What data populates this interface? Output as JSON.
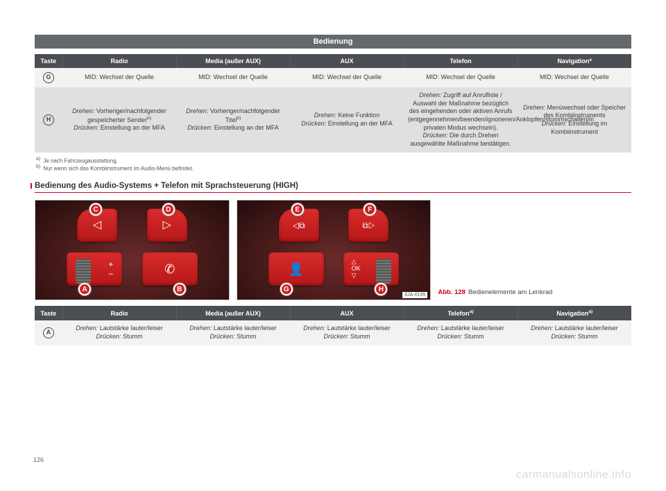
{
  "section_header": "Bedienung",
  "table1": {
    "headers": [
      "Taste",
      "Radio",
      "Media (außer AUX)",
      "AUX",
      "Telefon",
      "Navigation*"
    ],
    "rows": [
      {
        "key": "G",
        "shade": "light",
        "cells": [
          "MID: Wechsel der Quelle",
          "MID: Wechsel der Quelle",
          "MID: Wechsel der Quelle",
          "MID: Wechsel der Quelle",
          "MID: Wechsel der Quelle"
        ]
      },
      {
        "key": "H",
        "shade": "dark",
        "cells": [
          "<em>Drehen:</em> Vorheriger/nachfolgender gespeicherter Sender<sup>b)</sup><br><em>Drücken:</em> Einstellung an der MFA",
          "<em>Drehen:</em> Vorheriger/nachfolgender Titel<sup>b)</sup><br><em>Drücken:</em> Einstellung an der MFA",
          "<em>Drehen:</em> Keine Funktion<br><em>Drücken:</em> Einstellung an der MFA",
          "<em>Drehen:</em> Zugriff auf Anrufliste / Auswahl der Maßnahme bezüglich des eingehenden oder aktiven Anrufs (entgegennehmen/beenden/ignorieren/Anklopfen/stummschalten/in privaten Modus wechseln).<br><em>Drücken:</em> Die durch Drehen ausgewählte Maßnahme bestätigen.",
          "<em>Drehen:</em> Menüwechsel oder Speicher des Kombiinstruments<br><em>Drücken:</em> Einstellung im Kombiinstrument"
        ]
      }
    ]
  },
  "footnotes": [
    {
      "mark": "a)",
      "text": "Je nach Fahrzeugausstattung."
    },
    {
      "mark": "b)",
      "text": "Nur wenn sich das Kombiinstrument im Audio-Menü befindet."
    }
  ],
  "section_title": "Bedienung des Audio-Systems + Telefon mit Sprachsteuerung (HIGH)",
  "figure": {
    "callouts_left": {
      "C": "C",
      "D": "D",
      "A": "A",
      "B": "B"
    },
    "callouts_right": {
      "E": "E",
      "F": "F",
      "G": "G",
      "H": "H"
    },
    "code": "6JA-0195",
    "caption_ref": "Abb. 128",
    "caption_text": "Bedienelemente am Lenkrad"
  },
  "table2": {
    "headers": [
      "Taste",
      "Radio",
      "Media (außer AUX)",
      "AUX",
      "Telefon<sup>a)</sup>",
      "Navigation<sup>a)</sup>"
    ],
    "rows": [
      {
        "key": "A",
        "shade": "light",
        "cells": [
          "<em>Drehen:</em> Lautstärke lauter/leiser<br><em>Drücken:</em> Stumm",
          "<em>Drehen:</em> Lautstärke lauter/leiser<br><em>Drücken:</em> Stumm",
          "<em>Drehen:</em> Lautstärke lauter/leiser<br><em>Drücken:</em> Stumm",
          "<em>Drehen:</em> Lautstärke lauter/leiser<br><em>Drücken:</em> Stumm",
          "<em>Drehen:</em> Lautstärke lauter/leiser<br><em>Drücken:</em> Stumm"
        ]
      }
    ]
  },
  "page_number": "126",
  "watermark": "carmanualsonline.info"
}
